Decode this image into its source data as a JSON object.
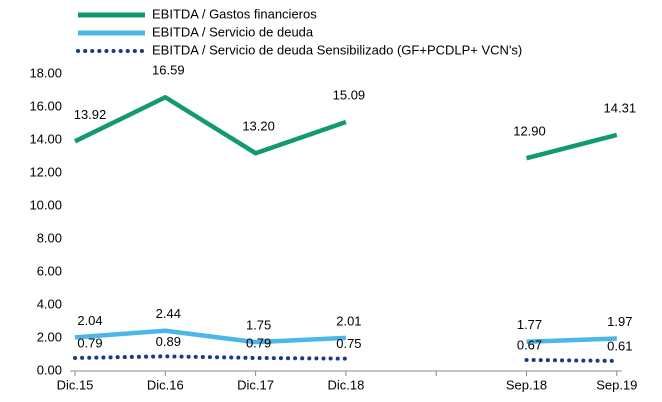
{
  "chart_data": {
    "type": "line",
    "categories": [
      "Dic.15",
      "Dic.16",
      "Dic.17",
      "Dic.18",
      null,
      "Sep.18",
      "Sep.19"
    ],
    "series": [
      {
        "name": "EBITDA / Gastos financieros",
        "color": "#129a6e",
        "style": "solid",
        "values": [
          13.92,
          16.59,
          13.2,
          15.09,
          null,
          12.9,
          14.31
        ],
        "value_labels": [
          "13.92",
          "16.59",
          "13.20",
          "15.09",
          null,
          "12.90",
          "14.31"
        ]
      },
      {
        "name": "EBITDA / Servicio de deuda",
        "color": "#4cb6e6",
        "style": "solid",
        "values": [
          2.04,
          2.44,
          1.75,
          2.01,
          null,
          1.77,
          1.97
        ],
        "value_labels": [
          "2.04",
          "2.44",
          "1.75",
          "2.01",
          null,
          "1.77",
          "1.97"
        ]
      },
      {
        "name": "EBITDA / Servicio de deuda Sensibilizado (GF+PCDLP+ VCN's)",
        "color": "#1c3a8c",
        "style": "dotted",
        "values": [
          0.79,
          0.89,
          0.79,
          0.75,
          null,
          0.67,
          0.61
        ],
        "value_labels": [
          "0.79",
          "0.89",
          "0.79",
          "0.75",
          null,
          "0.67",
          "0.61"
        ]
      }
    ],
    "ylim": [
      0,
      18
    ],
    "yticks": [
      {
        "value": 0,
        "label": "0.00"
      },
      {
        "value": 2,
        "label": "2.00"
      },
      {
        "value": 4,
        "label": "4.00"
      },
      {
        "value": 6,
        "label": "6.00"
      },
      {
        "value": 8,
        "label": "8.00"
      },
      {
        "value": 10,
        "label": "10.00"
      },
      {
        "value": 12,
        "label": "12.00"
      },
      {
        "value": 14,
        "label": "14.00"
      },
      {
        "value": 16,
        "label": "16.00"
      },
      {
        "value": 18,
        "label": "18.00"
      }
    ],
    "grid": false,
    "legend": "top"
  }
}
